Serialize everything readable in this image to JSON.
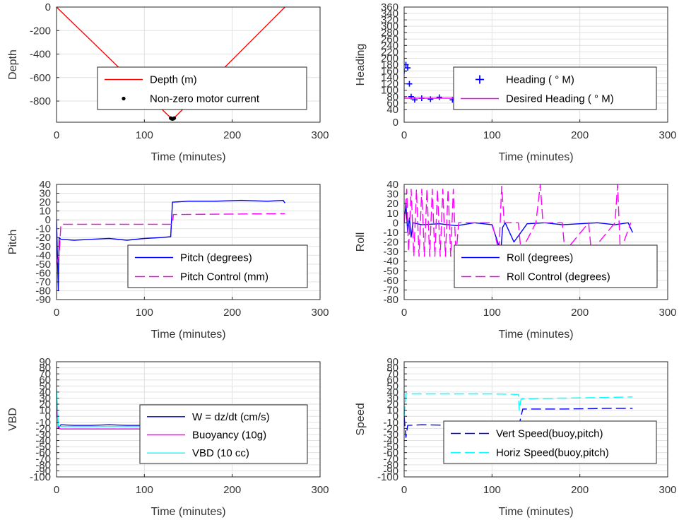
{
  "chart_data": [
    {
      "id": "depth",
      "type": "line",
      "xlabel": "Time (minutes)",
      "ylabel": "Depth",
      "xlim": [
        0,
        300
      ],
      "ylim": [
        -980,
        0
      ],
      "xticks": [
        0,
        100,
        200,
        300
      ],
      "yticks": [
        0,
        -200,
        -400,
        -600,
        -800
      ],
      "grid": true,
      "legend_position": "center-right",
      "series": [
        {
          "name": "Depth (m)",
          "style": "solid",
          "color": "#ff0000",
          "marker": "none",
          "x": [
            0,
            131,
            133,
            260
          ],
          "y": [
            0,
            -950,
            -950,
            0
          ]
        },
        {
          "name": "Non-zero motor current",
          "style": "none",
          "color": "#000000",
          "marker": "dot",
          "x": [
            130,
            131,
            132,
            133,
            134
          ],
          "y": [
            -945,
            -950,
            -952,
            -950,
            -945
          ]
        }
      ]
    },
    {
      "id": "heading",
      "type": "line",
      "xlabel": "Time (minutes)",
      "ylabel": "Heading",
      "xlim": [
        0,
        300
      ],
      "ylim": [
        0,
        360
      ],
      "xticks": [
        0,
        100,
        200,
        300
      ],
      "yticks": [
        0,
        40,
        60,
        80,
        100,
        120,
        140,
        160,
        180,
        200,
        220,
        240,
        260,
        280,
        300,
        320,
        340,
        360
      ],
      "grid": true,
      "legend_position": "center-right",
      "series": [
        {
          "name": "Heading ( ° M)",
          "style": "none",
          "color": "#0000ff",
          "marker": "plus",
          "x": [
            0,
            2,
            4,
            6,
            8,
            12,
            20,
            30,
            40,
            55,
            70,
            90,
            105,
            112,
            116,
            125,
            140,
            160,
            180,
            200,
            220,
            240,
            255,
            260
          ],
          "y": [
            160,
            180,
            170,
            120,
            80,
            70,
            75,
            72,
            78,
            70,
            74,
            76,
            72,
            105,
            80,
            74,
            76,
            78,
            72,
            74,
            76,
            70,
            75,
            50
          ]
        },
        {
          "name": "Desired Heading ( ° M)",
          "style": "solid",
          "color": "#ff00ff",
          "marker": "none",
          "x": [
            0,
            260
          ],
          "y": [
            75,
            75
          ]
        }
      ]
    },
    {
      "id": "pitch",
      "type": "line",
      "xlabel": "Time (minutes)",
      "ylabel": "Pitch",
      "xlim": [
        0,
        300
      ],
      "ylim": [
        -90,
        40
      ],
      "xticks": [
        0,
        100,
        200,
        300
      ],
      "yticks": [
        40,
        30,
        20,
        10,
        0,
        -10,
        -20,
        -30,
        -40,
        -50,
        -60,
        -70,
        -80,
        -90
      ],
      "grid": true,
      "legend_position": "bottom-right",
      "series": [
        {
          "name": "Pitch (degrees)",
          "style": "solid",
          "color": "#0000ff",
          "marker": "none",
          "x": [
            0,
            2,
            3,
            5,
            20,
            40,
            60,
            80,
            100,
            120,
            130,
            132,
            133,
            150,
            180,
            210,
            240,
            258,
            260
          ],
          "y": [
            0,
            -80,
            -20,
            -22,
            -23,
            -22,
            -21,
            -23,
            -21,
            -20,
            -19,
            20,
            20,
            21,
            21,
            22,
            21,
            22,
            19
          ]
        },
        {
          "name": "Pitch Control (mm)",
          "style": "dashed",
          "color": "#ff00ff",
          "marker": "none",
          "x": [
            0,
            3,
            5,
            132,
            133,
            260
          ],
          "y": [
            -50,
            -40,
            -5,
            -5,
            6,
            7
          ]
        }
      ]
    },
    {
      "id": "roll",
      "type": "line",
      "xlabel": "Time (minutes)",
      "ylabel": "Roll",
      "xlim": [
        0,
        300
      ],
      "ylim": [
        -80,
        40
      ],
      "xticks": [
        0,
        100,
        200,
        300
      ],
      "yticks": [
        40,
        30,
        20,
        10,
        0,
        -10,
        -20,
        -30,
        -40,
        -50,
        -60,
        -70,
        -80
      ],
      "grid": true,
      "legend_position": "bottom-right",
      "series": [
        {
          "name": "Roll (degrees)",
          "style": "solid",
          "color": "#0000ff",
          "marker": "none",
          "x": [
            0,
            2,
            4,
            6,
            8,
            10,
            20,
            40,
            60,
            80,
            100,
            110,
            112,
            115,
            125,
            140,
            160,
            180,
            200,
            220,
            240,
            255,
            260
          ],
          "y": [
            0,
            20,
            -10,
            5,
            -15,
            0,
            -2,
            -1,
            -3,
            0,
            -2,
            -30,
            -5,
            0,
            -20,
            -1,
            0,
            -2,
            -1,
            0,
            -2,
            0,
            -10
          ]
        },
        {
          "name": "Roll Control (degrees)",
          "style": "dashed",
          "color": "#ff00ff",
          "marker": "none",
          "x": [
            0,
            3,
            5,
            8,
            11,
            14,
            17,
            20,
            23,
            26,
            29,
            32,
            35,
            38,
            41,
            44,
            47,
            50,
            53,
            56,
            59,
            62,
            100,
            108,
            111,
            114,
            130,
            133,
            150,
            155,
            158,
            161,
            180,
            183,
            210,
            213,
            240,
            243,
            246,
            258
          ],
          "y": [
            0,
            35,
            -30,
            35,
            -35,
            35,
            -35,
            35,
            -35,
            35,
            -35,
            35,
            -35,
            35,
            -35,
            35,
            -35,
            35,
            -35,
            35,
            -35,
            0,
            0,
            -30,
            38,
            0,
            0,
            -30,
            0,
            40,
            0,
            0,
            0,
            -30,
            0,
            -30,
            0,
            40,
            -30,
            0
          ]
        }
      ]
    },
    {
      "id": "vbd",
      "type": "line",
      "xlabel": "Time (minutes)",
      "ylabel": "VBD",
      "xlim": [
        0,
        300
      ],
      "ylim": [
        -100,
        90
      ],
      "xticks": [
        0,
        100,
        200,
        300
      ],
      "yticks": [
        90,
        80,
        70,
        60,
        50,
        40,
        30,
        20,
        10,
        0,
        -10,
        -20,
        -30,
        -40,
        -50,
        -60,
        -70,
        -80,
        -90,
        -100
      ],
      "tick_labels": [
        "90",
        "80",
        "70",
        "60",
        "50",
        "40",
        "30",
        "20",
        "10",
        "0",
        "-10",
        "-20",
        "-30",
        "-40",
        "-50",
        "-60",
        "-70",
        "-80",
        "-90",
        "-100"
      ],
      "grid": true,
      "legend_position": "bottom-right",
      "series": [
        {
          "name": "W = dz/dt (cm/s)",
          "style": "solid",
          "color": "#0000ff",
          "marker": "none",
          "x": [
            0,
            2,
            5,
            20,
            40,
            60,
            80,
            100,
            120,
            130,
            132,
            135,
            160,
            190,
            220,
            250,
            260
          ],
          "y": [
            30,
            -20,
            -14,
            -15,
            -15,
            -14,
            -15,
            -15,
            -14,
            -13,
            0,
            11,
            11,
            12,
            11,
            11,
            9
          ]
        },
        {
          "name": "Buoyancy (10g)",
          "style": "solid",
          "color": "#ff00ff",
          "marker": "none",
          "x": [
            0,
            2,
            5,
            130,
            133,
            135,
            260
          ],
          "y": [
            30,
            -20,
            -21,
            -21,
            0,
            14,
            15
          ]
        },
        {
          "name": "VBD (10 cc)",
          "style": "solid",
          "color": "#00ffff",
          "marker": "none",
          "x": [
            0,
            2,
            5,
            130,
            133,
            135,
            260
          ],
          "y": [
            45,
            -15,
            -17,
            -17,
            5,
            17,
            17
          ]
        }
      ]
    },
    {
      "id": "speed",
      "type": "line",
      "xlabel": "Time (minutes)",
      "ylabel": "Speed",
      "xlim": [
        0,
        300
      ],
      "ylim": [
        -100,
        90
      ],
      "xticks": [
        0,
        100,
        200,
        300
      ],
      "yticks": [
        90,
        80,
        70,
        60,
        50,
        40,
        30,
        20,
        10,
        0,
        -10,
        -20,
        -30,
        -40,
        -50,
        -60,
        -70,
        -80,
        -90,
        -100
      ],
      "tick_labels": [
        "90",
        "80",
        "70",
        "60",
        "50",
        "40",
        "30",
        "20",
        "10",
        "0",
        "-10",
        "-20",
        "-30",
        "-40",
        "-50",
        "-60",
        "-70",
        "-80",
        "-90",
        "-100"
      ],
      "grid": true,
      "legend_position": "bottom-right",
      "series": [
        {
          "name": "Vert Speed(buoy,pitch)",
          "style": "dashed",
          "color": "#0000ff",
          "marker": "none",
          "x": [
            0,
            2,
            4,
            20,
            60,
            100,
            130,
            131,
            133,
            135,
            180,
            230,
            260
          ],
          "y": [
            0,
            -35,
            -15,
            -14,
            -15,
            -14,
            -14,
            -14,
            0,
            12,
            12,
            13,
            13
          ]
        },
        {
          "name": "Horiz Speed(buoy,pitch)",
          "style": "dashed",
          "color": "#00ffff",
          "marker": "none",
          "x": [
            0,
            2,
            4,
            50,
            100,
            130,
            131,
            133,
            135,
            180,
            230,
            260
          ],
          "y": [
            0,
            37,
            37,
            37,
            37,
            36,
            10,
            28,
            29,
            30,
            31,
            32
          ]
        }
      ]
    }
  ]
}
